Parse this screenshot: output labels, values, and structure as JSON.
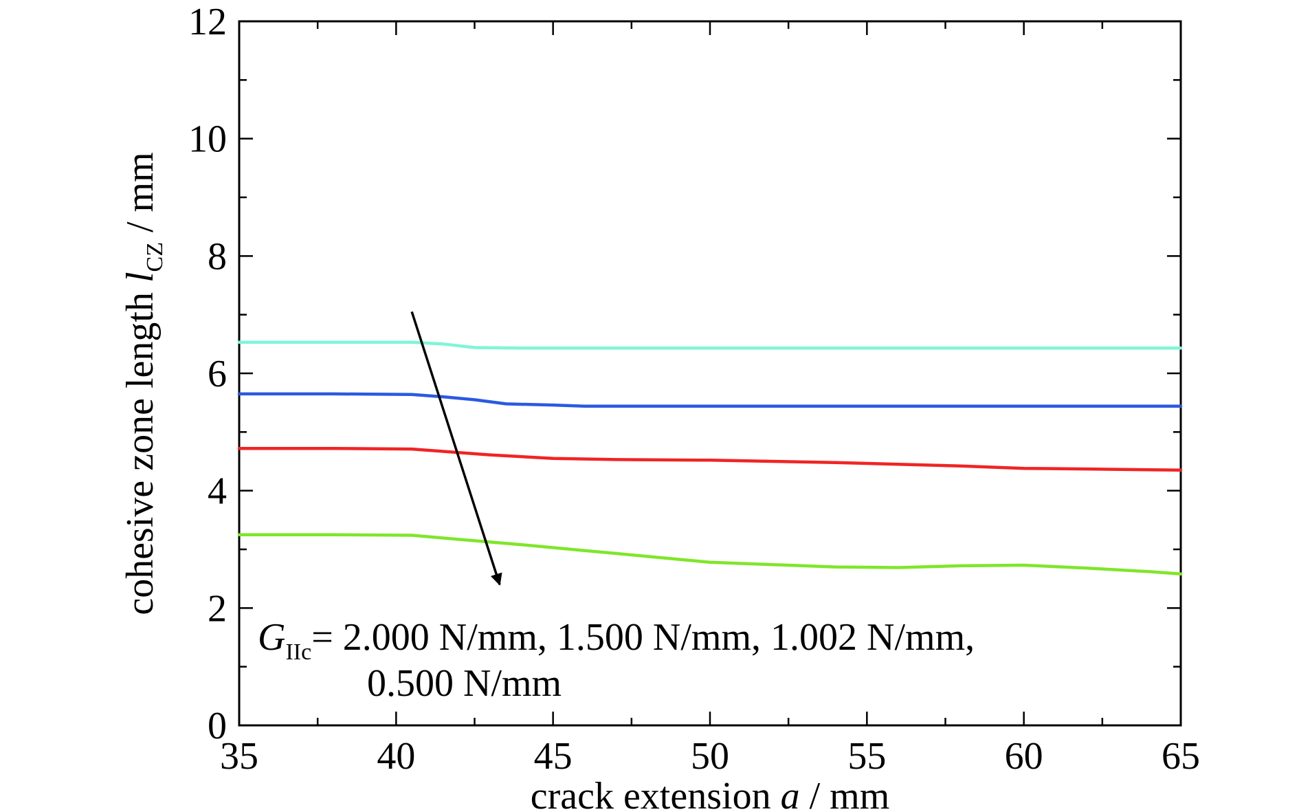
{
  "chart_data": {
    "type": "line",
    "title": "",
    "xlabel": {
      "prefix": "crack extension ",
      "var": "a",
      "suffix": " / mm"
    },
    "ylabel": {
      "prefix": "cohesive zone length ",
      "var": "l",
      "sub": "CZ",
      "suffix": " / mm"
    },
    "xlim": [
      35,
      65
    ],
    "ylim": [
      0,
      12
    ],
    "xticks": [
      35,
      40,
      45,
      50,
      55,
      60,
      65
    ],
    "yticks": [
      0,
      2,
      4,
      6,
      8,
      10,
      12
    ],
    "grid": false,
    "legend": "none",
    "series": [
      {
        "color": "#7ff5d8",
        "x": [
          35,
          37,
          39,
          40.5,
          41.5,
          42.5,
          44,
          50,
          55,
          60,
          65
        ],
        "y": [
          6.53,
          6.53,
          6.53,
          6.53,
          6.5,
          6.44,
          6.43,
          6.43,
          6.43,
          6.43,
          6.43
        ]
      },
      {
        "color": "#2a5ae0",
        "x": [
          35,
          38,
          40.5,
          41.5,
          42.5,
          43.5,
          45,
          46,
          50,
          55,
          60,
          65
        ],
        "y": [
          5.65,
          5.65,
          5.64,
          5.6,
          5.55,
          5.48,
          5.46,
          5.44,
          5.44,
          5.44,
          5.44,
          5.44
        ]
      },
      {
        "color": "#f02424",
        "x": [
          35,
          38,
          40.5,
          42,
          43,
          45,
          47,
          50,
          52,
          54,
          56,
          58,
          60,
          62,
          65
        ],
        "y": [
          4.72,
          4.72,
          4.71,
          4.65,
          4.61,
          4.55,
          4.53,
          4.52,
          4.5,
          4.48,
          4.45,
          4.42,
          4.38,
          4.37,
          4.35
        ]
      },
      {
        "color": "#7fe62a",
        "x": [
          35,
          38,
          40.5,
          42,
          44,
          46,
          48,
          50,
          52,
          54,
          56,
          58,
          60,
          62,
          64,
          65
        ],
        "y": [
          3.25,
          3.25,
          3.24,
          3.17,
          3.08,
          2.98,
          2.88,
          2.78,
          2.74,
          2.7,
          2.69,
          2.72,
          2.73,
          2.68,
          2.62,
          2.58
        ]
      }
    ],
    "arrow": {
      "from": [
        40.5,
        7.05
      ],
      "to": [
        43.3,
        2.4
      ]
    },
    "annotation": {
      "var": "G",
      "sub": "IIc",
      "line1": "= 2.000 N/mm, 1.500 N/mm, 1.002 N/mm,",
      "line2": "0.500 N/mm"
    }
  }
}
